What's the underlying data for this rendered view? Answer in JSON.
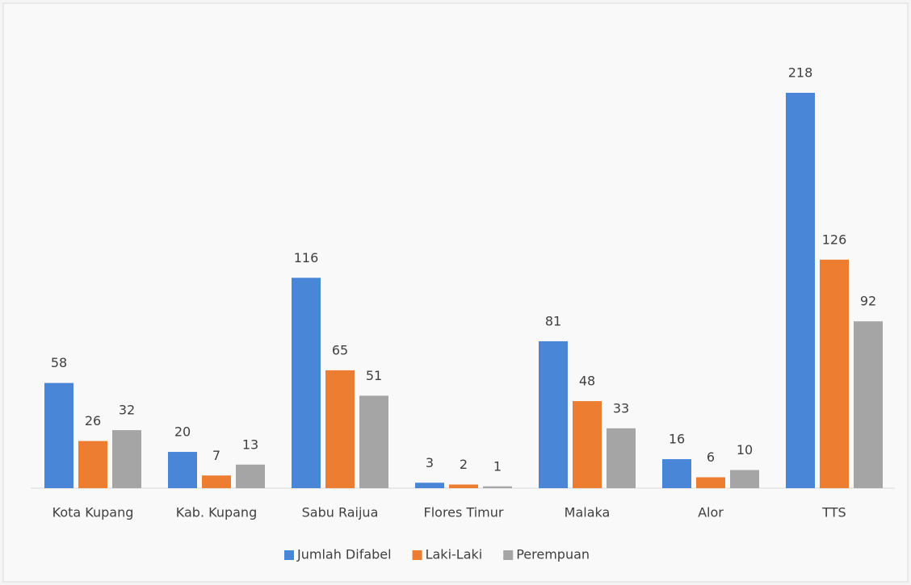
{
  "chart_data": {
    "type": "bar",
    "categories": [
      "Kota Kupang",
      "Kab. Kupang",
      "Sabu Raijua",
      "Flores Timur",
      "Malaka",
      "Alor",
      "TTS"
    ],
    "series": [
      {
        "name": "Jumlah Difabel",
        "color": "#4a86d8",
        "values": [
          58,
          20,
          116,
          3,
          81,
          16,
          218
        ]
      },
      {
        "name": "Laki-Laki",
        "color": "#ed7d31",
        "values": [
          26,
          7,
          65,
          2,
          48,
          6,
          126
        ]
      },
      {
        "name": "Perempuan",
        "color": "#a5a5a5",
        "values": [
          32,
          13,
          51,
          1,
          33,
          10,
          92
        ]
      }
    ],
    "legend": "bottom"
  }
}
